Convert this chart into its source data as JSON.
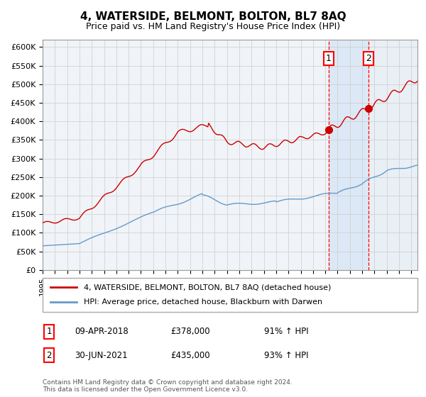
{
  "title": "4, WATERSIDE, BELMONT, BOLTON, BL7 8AQ",
  "subtitle": "Price paid vs. HM Land Registry's House Price Index (HPI)",
  "ylim": [
    0,
    620000
  ],
  "yticks": [
    0,
    50000,
    100000,
    150000,
    200000,
    250000,
    300000,
    350000,
    400000,
    450000,
    500000,
    550000,
    600000
  ],
  "ytick_labels": [
    "£0",
    "£50K",
    "£100K",
    "£150K",
    "£200K",
    "£250K",
    "£300K",
    "£350K",
    "£400K",
    "£450K",
    "£500K",
    "£550K",
    "£600K"
  ],
  "legend_line1": "4, WATERSIDE, BELMONT, BOLTON, BL7 8AQ (detached house)",
  "legend_line2": "HPI: Average price, detached house, Blackburn with Darwen",
  "line1_color": "#cc0000",
  "line2_color": "#6699cc",
  "event1_x": 2018.27,
  "event1_y": 378000,
  "event1_label": "1",
  "event2_x": 2021.5,
  "event2_y": 435000,
  "event2_label": "2",
  "event1_date": "09-APR-2018",
  "event1_price": "£378,000",
  "event1_hpi": "91% ↑ HPI",
  "event2_date": "30-JUN-2021",
  "event2_price": "£435,000",
  "event2_hpi": "93% ↑ HPI",
  "footer": "Contains HM Land Registry data © Crown copyright and database right 2024.\nThis data is licensed under the Open Government Licence v3.0.",
  "background_color": "#ffffff",
  "plot_bg_color": "#f0f4f8",
  "shade_color": "#dce8f5",
  "hatch_bg_color": "#e8eff5",
  "grid_color": "#cccccc",
  "xlim_start": 1995,
  "xlim_end": 2025.5
}
